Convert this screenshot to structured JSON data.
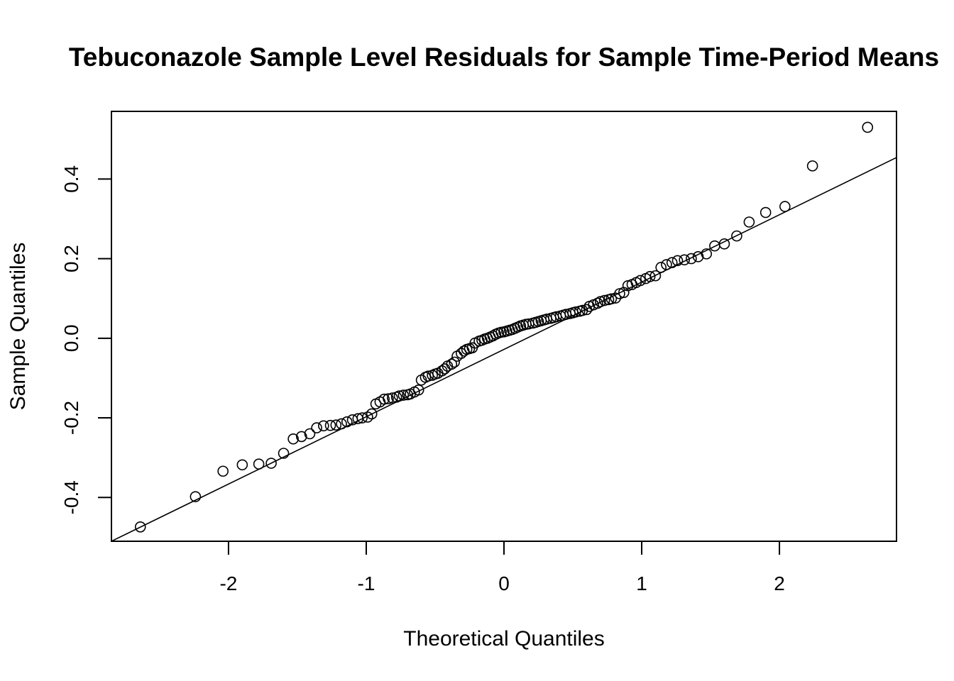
{
  "chart_data": {
    "type": "scatter",
    "title": "Tebuconazole Sample Level Residuals for Sample Time-Period Means",
    "xlabel": "Theoretical Quantiles",
    "ylabel": "Sample Quantiles",
    "xlim": [
      -2.85,
      2.85
    ],
    "ylim": [
      -0.51,
      0.57
    ],
    "x_ticks": [
      -2,
      -1,
      0,
      1,
      2
    ],
    "x_tick_labels": [
      "-2",
      "-1",
      "0",
      "1",
      "2"
    ],
    "y_ticks": [
      -0.4,
      -0.2,
      0.0,
      0.2,
      0.4
    ],
    "y_tick_labels": [
      "-0.4",
      "-0.2",
      "0.0",
      "0.2",
      "0.4"
    ],
    "grid": false,
    "legend": false,
    "reference_line": {
      "x1": -2.85,
      "y1": -0.51,
      "x2": 2.85,
      "y2": 0.454
    },
    "x": [
      -2.64,
      -2.24,
      -2.04,
      -1.9,
      -1.78,
      -1.69,
      -1.6,
      -1.53,
      -1.47,
      -1.41,
      -1.36,
      -1.31,
      -1.26,
      -1.22,
      -1.18,
      -1.14,
      -1.1,
      -1.06,
      -1.03,
      -0.99,
      -0.96,
      -0.93,
      -0.9,
      -0.87,
      -0.84,
      -0.81,
      -0.78,
      -0.76,
      -0.73,
      -0.7,
      -0.68,
      -0.65,
      -0.62,
      -0.6,
      -0.57,
      -0.55,
      -0.52,
      -0.5,
      -0.48,
      -0.45,
      -0.43,
      -0.41,
      -0.38,
      -0.36,
      -0.34,
      -0.31,
      -0.29,
      -0.27,
      -0.25,
      -0.23,
      -0.21,
      -0.18,
      -0.16,
      -0.14,
      -0.12,
      -0.1,
      -0.08,
      -0.06,
      -0.04,
      -0.02,
      0.0,
      0.02,
      0.04,
      0.06,
      0.08,
      0.1,
      0.12,
      0.14,
      0.16,
      0.18,
      0.21,
      0.23,
      0.25,
      0.27,
      0.29,
      0.31,
      0.34,
      0.36,
      0.38,
      0.41,
      0.43,
      0.45,
      0.48,
      0.5,
      0.52,
      0.55,
      0.57,
      0.6,
      0.62,
      0.65,
      0.68,
      0.7,
      0.73,
      0.76,
      0.78,
      0.81,
      0.84,
      0.87,
      0.9,
      0.93,
      0.96,
      0.99,
      1.03,
      1.06,
      1.1,
      1.14,
      1.18,
      1.22,
      1.26,
      1.31,
      1.36,
      1.41,
      1.47,
      1.53,
      1.6,
      1.69,
      1.78,
      1.9,
      2.04,
      2.24,
      2.64
    ],
    "y": [
      -0.474,
      -0.398,
      -0.334,
      -0.318,
      -0.316,
      -0.314,
      -0.289,
      -0.253,
      -0.247,
      -0.24,
      -0.225,
      -0.22,
      -0.219,
      -0.218,
      -0.215,
      -0.21,
      -0.205,
      -0.202,
      -0.2,
      -0.198,
      -0.19,
      -0.165,
      -0.16,
      -0.153,
      -0.152,
      -0.15,
      -0.148,
      -0.145,
      -0.143,
      -0.142,
      -0.14,
      -0.135,
      -0.13,
      -0.105,
      -0.098,
      -0.095,
      -0.093,
      -0.09,
      -0.088,
      -0.082,
      -0.077,
      -0.07,
      -0.065,
      -0.06,
      -0.045,
      -0.038,
      -0.032,
      -0.028,
      -0.026,
      -0.024,
      -0.012,
      -0.007,
      -0.005,
      -0.002,
      0.0,
      0.003,
      0.006,
      0.01,
      0.013,
      0.015,
      0.016,
      0.018,
      0.02,
      0.022,
      0.025,
      0.028,
      0.031,
      0.033,
      0.035,
      0.036,
      0.038,
      0.04,
      0.042,
      0.044,
      0.046,
      0.048,
      0.05,
      0.052,
      0.054,
      0.056,
      0.058,
      0.06,
      0.062,
      0.064,
      0.066,
      0.068,
      0.07,
      0.072,
      0.08,
      0.084,
      0.088,
      0.092,
      0.095,
      0.097,
      0.099,
      0.101,
      0.112,
      0.115,
      0.132,
      0.135,
      0.14,
      0.145,
      0.15,
      0.155,
      0.157,
      0.178,
      0.185,
      0.19,
      0.195,
      0.197,
      0.2,
      0.205,
      0.212,
      0.232,
      0.237,
      0.257,
      0.292,
      0.316,
      0.331,
      0.433,
      0.53
    ]
  }
}
